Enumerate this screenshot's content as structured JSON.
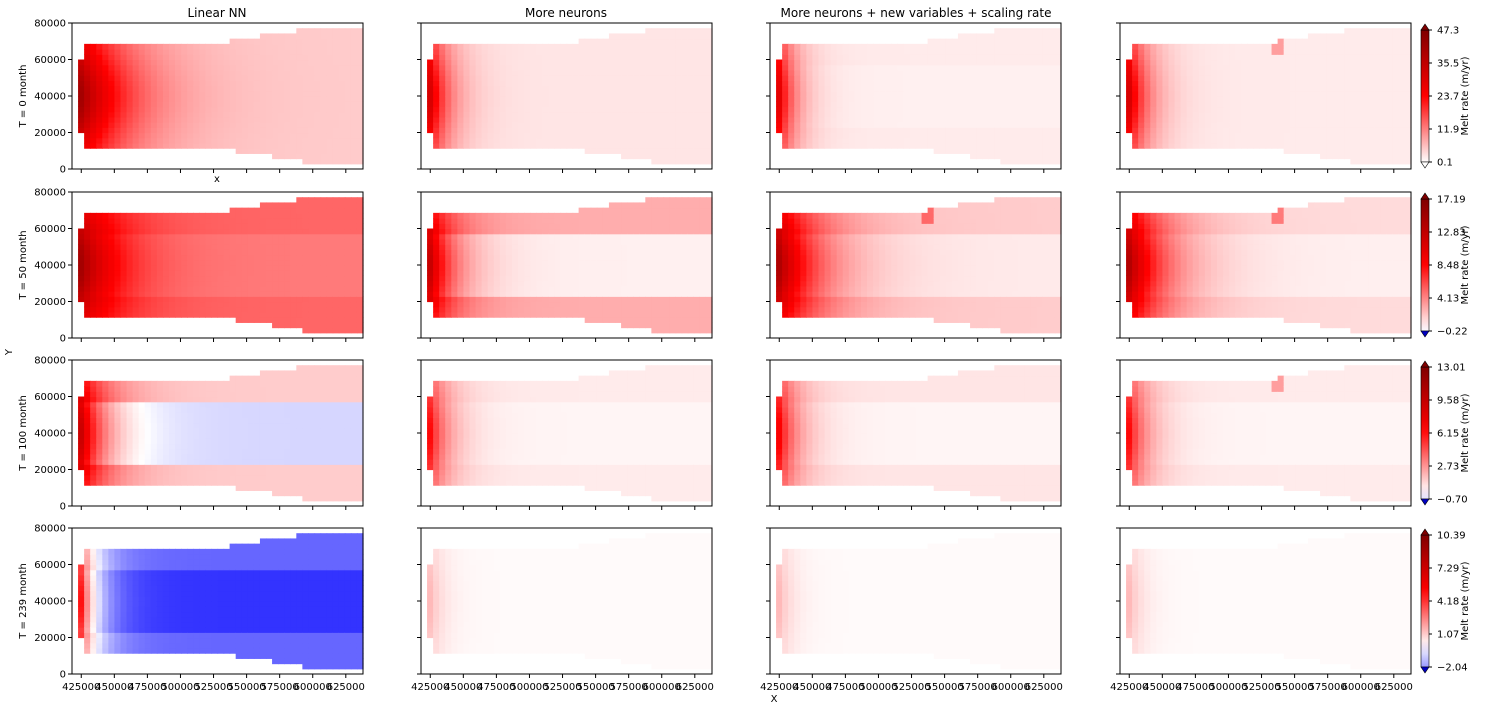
{
  "chart_data": {
    "type": "heatmap",
    "layout": "4x4 panel grid",
    "column_titles": [
      "Linear NN",
      "More neurons",
      "More neurons + new variables + scaling rate",
      ""
    ],
    "row_labels": [
      "T = 0 month",
      "T = 50 month",
      "T = 100 month",
      "T = 239 month"
    ],
    "shared_ylabel": "Y",
    "shared_xlabel": "X",
    "extra_xlabel": "x",
    "x_ticks": [
      "425000",
      "450000",
      "475000",
      "500000",
      "525000",
      "550000",
      "575000",
      "600000",
      "625000"
    ],
    "y_ticks": [
      "0",
      "20000",
      "40000",
      "60000",
      "80000"
    ],
    "xlim": [
      418000,
      638000
    ],
    "ylim": [
      0,
      80000
    ],
    "colormap": "diverging blue-white-red (seismic)",
    "colorbar_label": "Melt rate (m/yr)",
    "colorbars": [
      {
        "ticks": [
          "0.1",
          "11.9",
          "23.7",
          "35.5",
          "47.3"
        ],
        "min": 0.1,
        "max": 47.3
      },
      {
        "ticks": [
          "−0.22",
          "4.13",
          "8.48",
          "12.83",
          "17.19"
        ],
        "min": -0.22,
        "max": 17.19
      },
      {
        "ticks": [
          "−0.70",
          "2.73",
          "6.15",
          "9.58",
          "13.01"
        ],
        "min": -0.7,
        "max": 13.01
      },
      {
        "ticks": [
          "−2.04",
          "1.07",
          "4.18",
          "7.29",
          "10.39"
        ],
        "min": -2.04,
        "max": 10.39
      }
    ],
    "panels": [
      [
        {
          "edge": 1.0,
          "decay": 0.16,
          "interior": 0.1,
          "band": 0.1,
          "asym": 0.55,
          "spike": 0
        },
        {
          "edge": 1.0,
          "decay": 0.07,
          "interior": 0.05,
          "band": 0.05,
          "asym": 0.55,
          "spike": 0
        },
        {
          "edge": 1.0,
          "decay": 0.06,
          "interior": 0.03,
          "band": 0.04,
          "asym": 0.55,
          "spike": 0
        },
        {
          "edge": 1.0,
          "decay": 0.07,
          "interior": 0.04,
          "band": 0.04,
          "asym": 0.6,
          "spike": 0.5
        }
      ],
      [
        {
          "edge": 1.0,
          "decay": 0.12,
          "interior": 0.26,
          "band": 0.3,
          "asym": 0.55,
          "spike": 0
        },
        {
          "edge": 1.0,
          "decay": 0.09,
          "interior": 0.03,
          "band": 0.16,
          "asym": 0.55,
          "spike": 0
        },
        {
          "edge": 1.0,
          "decay": 0.14,
          "interior": 0.04,
          "band": 0.1,
          "asym": 0.6,
          "spike": 0.6
        },
        {
          "edge": 1.0,
          "decay": 0.13,
          "interior": 0.03,
          "band": 0.07,
          "asym": 0.6,
          "spike": 0.6
        }
      ],
      [
        {
          "edge": 1.0,
          "decay": 0.1,
          "interior": -0.08,
          "band": 0.1,
          "asym": 0.55,
          "spike": 0
        },
        {
          "edge": 0.75,
          "decay": 0.07,
          "interior": 0.02,
          "band": 0.04,
          "asym": 0.55,
          "spike": 0
        },
        {
          "edge": 0.8,
          "decay": 0.07,
          "interior": 0.02,
          "band": 0.05,
          "asym": 0.55,
          "spike": 0
        },
        {
          "edge": 0.75,
          "decay": 0.07,
          "interior": 0.02,
          "band": 0.04,
          "asym": 0.55,
          "spike": 0.5
        }
      ],
      [
        {
          "edge": 1.0,
          "decay": 0.06,
          "interior": -0.4,
          "band": -0.3,
          "asym": 0.5,
          "spike": 0
        },
        {
          "edge": 0.25,
          "decay": 0.05,
          "interior": 0.01,
          "band": 0.01,
          "asym": 0.55,
          "spike": 0
        },
        {
          "edge": 0.25,
          "decay": 0.05,
          "interior": 0.01,
          "band": 0.01,
          "asym": 0.55,
          "spike": 0
        },
        {
          "edge": 0.25,
          "decay": 0.05,
          "interior": 0.01,
          "band": 0.01,
          "asym": 0.55,
          "spike": 0
        }
      ]
    ]
  }
}
